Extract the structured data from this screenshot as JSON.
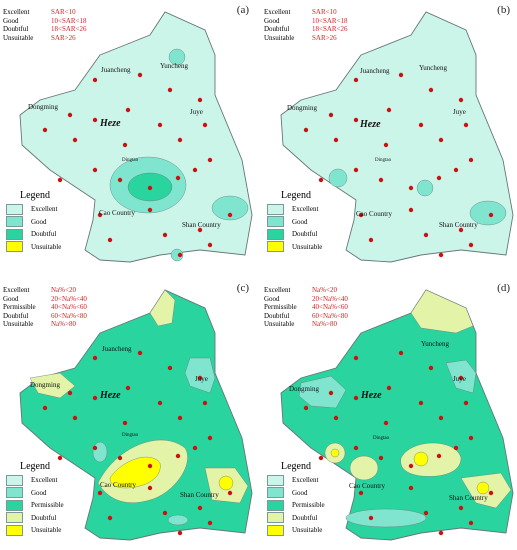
{
  "colors": {
    "excellent": "#ccf5ea",
    "good": "#7fe5cf",
    "permissible": "#2ad49f",
    "doubtful": "#e3f3a8",
    "unsuitable": "#ffff00",
    "boundary": "#667777",
    "point": "#cc1111"
  },
  "panels": [
    {
      "label": "(a)",
      "criteria": [
        {
          "class": "Excellent",
          "rule": "SAR<10"
        },
        {
          "class": "Good",
          "rule": "10<SAR<18"
        },
        {
          "class": "Doubtful",
          "rule": "18<SAR<26"
        },
        {
          "class": "Unsuitable",
          "rule": "SAR>26"
        }
      ],
      "legend": {
        "title": "Legend",
        "items": [
          "Excellent",
          "Good",
          "Doubtful",
          "Unsuitable"
        ]
      }
    },
    {
      "label": "(b)",
      "criteria": [
        {
          "class": "Excellent",
          "rule": "SAR<10"
        },
        {
          "class": "Good",
          "rule": "10<SAR<18"
        },
        {
          "class": "Doubtful",
          "rule": "18<SAR<26"
        },
        {
          "class": "Unsuitable",
          "rule": "SAR>26"
        }
      ],
      "legend": {
        "title": "Legend",
        "items": [
          "Excellent",
          "Good",
          "Doubtful",
          "Unsuitable"
        ]
      }
    },
    {
      "label": "(c)",
      "criteria": [
        {
          "class": "Excellent",
          "rule": "Na%<20"
        },
        {
          "class": "Good",
          "rule": "20<Na%<40"
        },
        {
          "class": "Permissible",
          "rule": "40<Na%<60"
        },
        {
          "class": "Doubtful",
          "rule": "60<Na%<80"
        },
        {
          "class": "Unsuitable",
          "rule": "Na%>80"
        }
      ],
      "legend": {
        "title": "Legend",
        "items": [
          "Excellent",
          "Good",
          "Permissible",
          "Doubtful",
          "Unsuitable"
        ]
      }
    },
    {
      "label": "(d)",
      "criteria": [
        {
          "class": "Excellent",
          "rule": "Na%<20"
        },
        {
          "class": "Good",
          "rule": "20<Na%<40"
        },
        {
          "class": "Permissible",
          "rule": "40<Na%<60"
        },
        {
          "class": "Doubtful",
          "rule": "60<Na%<80"
        },
        {
          "class": "Unsuitable",
          "rule": "Na%>80"
        }
      ],
      "legend": {
        "title": "Legend",
        "items": [
          "Excellent",
          "Good",
          "Permissible",
          "Doubtful",
          "Unsuitable"
        ]
      }
    }
  ],
  "places": {
    "juancheng": "Juancheng",
    "yuncheng": "Yuncheng",
    "dongming": "Dongming",
    "juye": "Juye",
    "heze": "Heze",
    "dingtao": "Dingtao",
    "cao": "Cao Country",
    "shan": "Shan Country"
  }
}
